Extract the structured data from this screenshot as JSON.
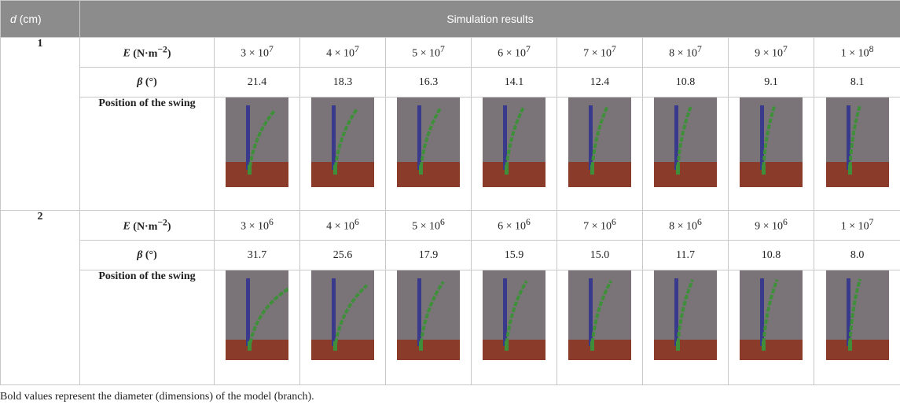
{
  "header": {
    "d_symbol": "d",
    "d_unit": "(cm)",
    "results": "Simulation results"
  },
  "labels": {
    "e_symbol": "E",
    "e_unit": "(N·m",
    "e_exp": "−2",
    "e_close": ")",
    "beta_symbol": "β",
    "beta_unit": "(°)",
    "swing": "Position of the swing"
  },
  "groups": [
    {
      "d": "1",
      "e": [
        {
          "m": "3 × 10",
          "exp": "7"
        },
        {
          "m": "4 × 10",
          "exp": "7"
        },
        {
          "m": "5 × 10",
          "exp": "7"
        },
        {
          "m": "6 × 10",
          "exp": "7"
        },
        {
          "m": "7 × 10",
          "exp": "7"
        },
        {
          "m": "8 × 10",
          "exp": "7"
        },
        {
          "m": "9 × 10",
          "exp": "7"
        },
        {
          "m": "1 × 10",
          "exp": "8"
        }
      ],
      "beta": [
        "21.4",
        "18.3",
        "16.3",
        "14.1",
        "12.4",
        "10.8",
        "9.1",
        "8.1"
      ]
    },
    {
      "d": "2",
      "e": [
        {
          "m": "3 × 10",
          "exp": "6"
        },
        {
          "m": "4 × 10",
          "exp": "6"
        },
        {
          "m": "5 × 10",
          "exp": "6"
        },
        {
          "m": "6 × 10",
          "exp": "6"
        },
        {
          "m": "7 × 10",
          "exp": "6"
        },
        {
          "m": "8 × 10",
          "exp": "6"
        },
        {
          "m": "9 × 10",
          "exp": "6"
        },
        {
          "m": "1 × 10",
          "exp": "7"
        }
      ],
      "beta": [
        "31.7",
        "25.6",
        "17.9",
        "15.9",
        "15.0",
        "11.7",
        "10.8",
        "8.0"
      ]
    }
  ],
  "colors": {
    "header_bg": "#8c8c8c",
    "sky": "#7a7479",
    "ground": "#8b3b2a",
    "pole": "#3a3a8c",
    "branch": "#3f8f3a"
  },
  "footnote": "Bold values represent the diameter (dimensions) of the model (branch)."
}
